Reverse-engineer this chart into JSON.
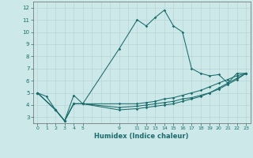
{
  "xlabel": "Humidex (Indice chaleur)",
  "background_color": "#cce8e8",
  "grid_color": "#b8d4d4",
  "line_color": "#1a6b6b",
  "xlim": [
    -0.5,
    23.5
  ],
  "ylim": [
    2.5,
    12.5
  ],
  "xticks": [
    0,
    1,
    2,
    3,
    4,
    5,
    9,
    11,
    12,
    13,
    14,
    15,
    16,
    17,
    18,
    19,
    20,
    21,
    22,
    23
  ],
  "yticks": [
    3,
    4,
    5,
    6,
    7,
    8,
    9,
    10,
    11,
    12
  ],
  "series1_x": [
    0,
    1,
    2,
    3,
    4,
    5,
    9,
    11,
    12,
    13,
    14,
    15,
    16,
    17,
    18,
    19,
    20,
    21,
    22,
    23
  ],
  "series1_y": [
    5.0,
    4.7,
    3.6,
    2.7,
    4.8,
    4.1,
    8.6,
    11.0,
    10.5,
    11.2,
    11.8,
    10.5,
    10.0,
    7.0,
    6.6,
    6.4,
    6.5,
    5.8,
    6.6,
    6.6
  ],
  "series2_x": [
    0,
    2,
    3,
    4,
    5,
    9,
    11,
    12,
    13,
    14,
    15,
    16,
    17,
    18,
    19,
    20,
    21,
    22,
    23
  ],
  "series2_y": [
    5.0,
    3.6,
    2.7,
    4.1,
    4.1,
    4.1,
    4.1,
    4.2,
    4.3,
    4.5,
    4.6,
    4.8,
    5.0,
    5.2,
    5.5,
    5.8,
    6.1,
    6.4,
    6.6
  ],
  "series3_x": [
    0,
    2,
    3,
    4,
    5,
    9,
    11,
    12,
    13,
    14,
    15,
    16,
    17,
    18,
    19,
    20,
    21,
    22,
    23
  ],
  "series3_y": [
    5.0,
    3.6,
    2.7,
    4.1,
    4.1,
    3.8,
    3.9,
    4.0,
    4.1,
    4.2,
    4.3,
    4.5,
    4.6,
    4.8,
    5.0,
    5.4,
    5.8,
    6.2,
    6.6
  ],
  "series4_x": [
    0,
    2,
    3,
    4,
    5,
    9,
    11,
    12,
    13,
    14,
    15,
    16,
    17,
    18,
    19,
    20,
    21,
    22,
    23
  ],
  "series4_y": [
    5.0,
    3.6,
    2.7,
    4.1,
    4.1,
    3.6,
    3.7,
    3.8,
    3.9,
    4.0,
    4.1,
    4.3,
    4.5,
    4.7,
    5.0,
    5.3,
    5.7,
    6.1,
    6.6
  ]
}
